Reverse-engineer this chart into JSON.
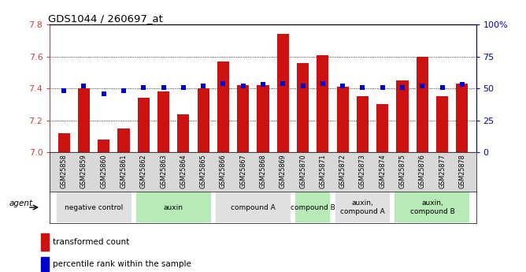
{
  "title": "GDS1044 / 260697_at",
  "samples": [
    "GSM25858",
    "GSM25859",
    "GSM25860",
    "GSM25861",
    "GSM25862",
    "GSM25863",
    "GSM25864",
    "GSM25865",
    "GSM25866",
    "GSM25867",
    "GSM25868",
    "GSM25869",
    "GSM25870",
    "GSM25871",
    "GSM25872",
    "GSM25873",
    "GSM25874",
    "GSM25875",
    "GSM25876",
    "GSM25877",
    "GSM25878"
  ],
  "bar_values": [
    7.12,
    7.4,
    7.08,
    7.15,
    7.34,
    7.38,
    7.24,
    7.4,
    7.57,
    7.42,
    7.42,
    7.74,
    7.56,
    7.61,
    7.41,
    7.35,
    7.3,
    7.45,
    7.6,
    7.35,
    7.43
  ],
  "percentile_values": [
    48,
    52,
    46,
    48,
    51,
    51,
    51,
    52,
    54,
    52,
    53,
    54,
    52,
    54,
    52,
    51,
    51,
    51,
    52,
    51,
    53
  ],
  "ymin": 7.0,
  "ymax": 7.8,
  "y2min": 0,
  "y2max": 100,
  "yticks": [
    7.0,
    7.2,
    7.4,
    7.6,
    7.8
  ],
  "y2ticks": [
    0,
    25,
    50,
    75,
    100
  ],
  "y2ticklabels": [
    "0",
    "25",
    "50",
    "75",
    "100%"
  ],
  "bar_color": "#cc1111",
  "dot_color": "#0000cc",
  "xtick_bg": "#d8d8d8",
  "groups": [
    {
      "label": "negative control",
      "start": 0,
      "end": 3,
      "color": "#e0e0e0"
    },
    {
      "label": "auxin",
      "start": 4,
      "end": 7,
      "color": "#b8eab8"
    },
    {
      "label": "compound A",
      "start": 8,
      "end": 11,
      "color": "#e0e0e0"
    },
    {
      "label": "compound B",
      "start": 12,
      "end": 13,
      "color": "#b8eab8"
    },
    {
      "label": "auxin,\ncompound A",
      "start": 14,
      "end": 16,
      "color": "#e0e0e0"
    },
    {
      "label": "auxin,\ncompound B",
      "start": 17,
      "end": 20,
      "color": "#b8eab8"
    }
  ],
  "legend_bar_label": "transformed count",
  "legend_dot_label": "percentile rank within the sample",
  "agent_label": "agent",
  "background_color": "#ffffff",
  "axis_color_left": "#cc4444",
  "axis_color_right": "#0000cc"
}
